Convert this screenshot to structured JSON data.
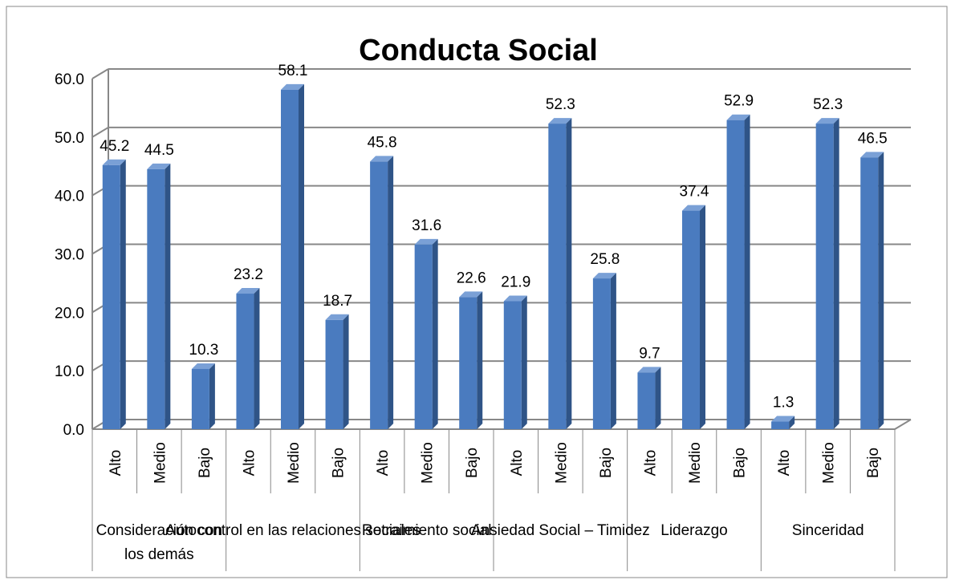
{
  "chart_data": {
    "type": "bar3d",
    "title": "Conducta Social",
    "groups": [
      {
        "name": "Consideración con los demás",
        "categories": [
          "Alto",
          "Medio",
          "Bajo"
        ]
      },
      {
        "name": "Autocontrol en las relaciones sociales",
        "categories": [
          "Alto",
          "Medio",
          "Bajo"
        ]
      },
      {
        "name": "Retraimiento social",
        "categories": [
          "Alto",
          "Medio",
          "Bajo"
        ]
      },
      {
        "name": "Ansiedad Social – Timidez",
        "categories": [
          "Alto",
          "Medio",
          "Bajo"
        ]
      },
      {
        "name": "Liderazgo",
        "categories": [
          "Alto",
          "Medio",
          "Bajo"
        ]
      },
      {
        "name": "Sinceridad",
        "categories": [
          "Alto",
          "Medio",
          "Bajo"
        ]
      }
    ],
    "values": [
      45.2,
      44.5,
      10.3,
      23.2,
      58.1,
      18.7,
      45.8,
      31.6,
      22.6,
      21.9,
      52.3,
      25.8,
      9.7,
      37.4,
      52.9,
      1.3,
      52.3,
      46.5
    ],
    "color": "#4a7bbf",
    "ylim": [
      0,
      60
    ],
    "yticks": [
      {
        "value": 0,
        "label": "0.0"
      },
      {
        "value": 10,
        "label": "10.0"
      },
      {
        "value": 20,
        "label": "20.0"
      },
      {
        "value": 30,
        "label": "30.0"
      },
      {
        "value": 40,
        "label": "40.0"
      },
      {
        "value": 50,
        "label": "50.0"
      },
      {
        "value": 60,
        "label": "60.0"
      }
    ],
    "grid": true
  }
}
